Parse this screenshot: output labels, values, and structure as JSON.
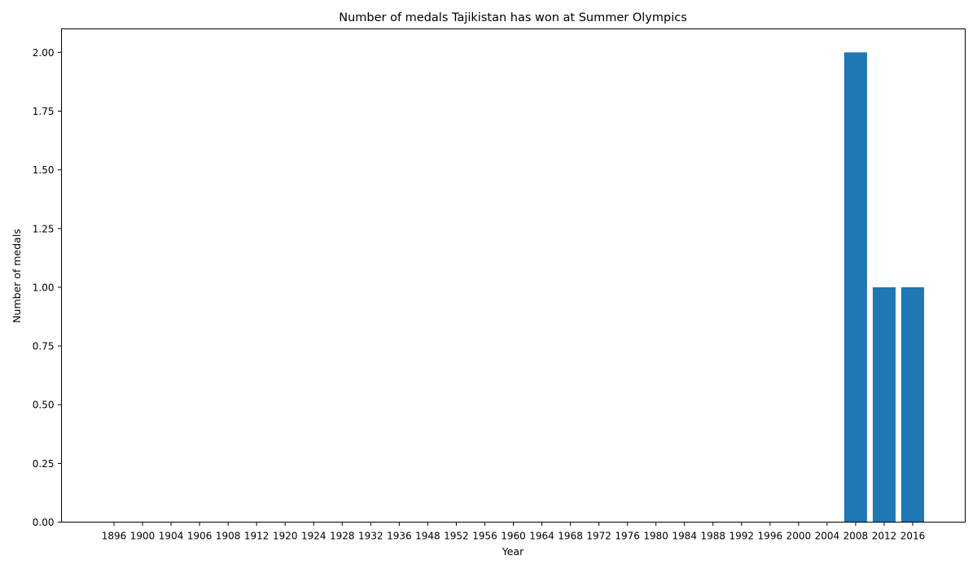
{
  "chart_data": {
    "type": "bar",
    "title": "Number of medals Tajikistan has won at Summer Olympics",
    "xlabel": "Year",
    "ylabel": "Number of medals",
    "categories": [
      "1896",
      "1900",
      "1904",
      "1906",
      "1908",
      "1912",
      "1920",
      "1924",
      "1928",
      "1932",
      "1936",
      "1948",
      "1952",
      "1956",
      "1960",
      "1964",
      "1968",
      "1972",
      "1976",
      "1980",
      "1984",
      "1988",
      "1992",
      "1996",
      "2000",
      "2004",
      "2008",
      "2012",
      "2016"
    ],
    "values": [
      0,
      0,
      0,
      0,
      0,
      0,
      0,
      0,
      0,
      0,
      0,
      0,
      0,
      0,
      0,
      0,
      0,
      0,
      0,
      0,
      0,
      0,
      0,
      0,
      0,
      0,
      2,
      1,
      1
    ],
    "ylim": [
      0,
      2.1
    ],
    "yticks": [
      "0.00",
      "0.25",
      "0.50",
      "0.75",
      "1.00",
      "1.25",
      "1.50",
      "1.75",
      "2.00"
    ],
    "grid": false,
    "bar_color": "#1f77b4"
  }
}
